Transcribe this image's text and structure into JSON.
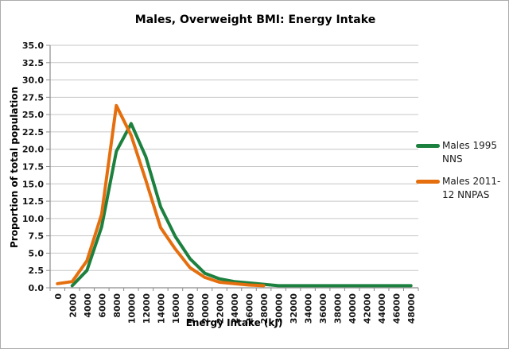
{
  "chart_data": {
    "type": "line",
    "title": "Males, Overweight BMI: Energy Intake",
    "xlabel": "Energy Intake (kJ)",
    "ylabel": "Proportion of total population",
    "ylim": [
      0,
      35
    ],
    "ytick_step": 2.5,
    "grid": true,
    "legend_position": "right",
    "categories": [
      0,
      2000,
      4000,
      6000,
      8000,
      10000,
      12000,
      14000,
      16000,
      18000,
      20000,
      22000,
      24000,
      26000,
      28000,
      30000,
      32000,
      34000,
      36000,
      38000,
      40000,
      42000,
      44000,
      46000,
      48000
    ],
    "x_tick_labels": [
      "0",
      "2000",
      "4000",
      "6000",
      "8000",
      "10000",
      "12000",
      "14000",
      "16000",
      "18000",
      "20000",
      "22000",
      "24000",
      "26000",
      "28000",
      "30000",
      "32000",
      "34000",
      "36000",
      "38000",
      "40000",
      "42000",
      "44000",
      "46000",
      "48000"
    ],
    "y_tick_labels": [
      "0.0",
      "2.5",
      "5.0",
      "7.5",
      "10.0",
      "12.5",
      "15.0",
      "17.5",
      "20.0",
      "22.5",
      "25.0",
      "27.5",
      "30.0",
      "32.5",
      "35.0"
    ],
    "series": [
      {
        "name": "Males 1995 NNS",
        "color": "#1C803E",
        "values": [
          null,
          0.3,
          2.5,
          8.8,
          19.7,
          23.7,
          18.9,
          11.7,
          7.4,
          4.2,
          2.1,
          1.3,
          0.9,
          0.7,
          0.5,
          0.3,
          0.3,
          0.3,
          0.3,
          0.3,
          0.3,
          0.3,
          0.3,
          0.3,
          0.3
        ]
      },
      {
        "name": "Males 2011-12 NNPAS",
        "color": "#E56F0E",
        "values": [
          0.6,
          0.9,
          3.9,
          10.6,
          26.3,
          22.0,
          15.5,
          8.7,
          5.6,
          2.9,
          1.5,
          0.8,
          0.6,
          0.4,
          0.3,
          null,
          null,
          null,
          null,
          null,
          null,
          null,
          null,
          null,
          null
        ]
      }
    ],
    "style_colors": {
      "gridline": "#C6C6C6",
      "axis": "#8C8C8C",
      "frame_border": "#ABABAB",
      "text": "#000000"
    }
  }
}
